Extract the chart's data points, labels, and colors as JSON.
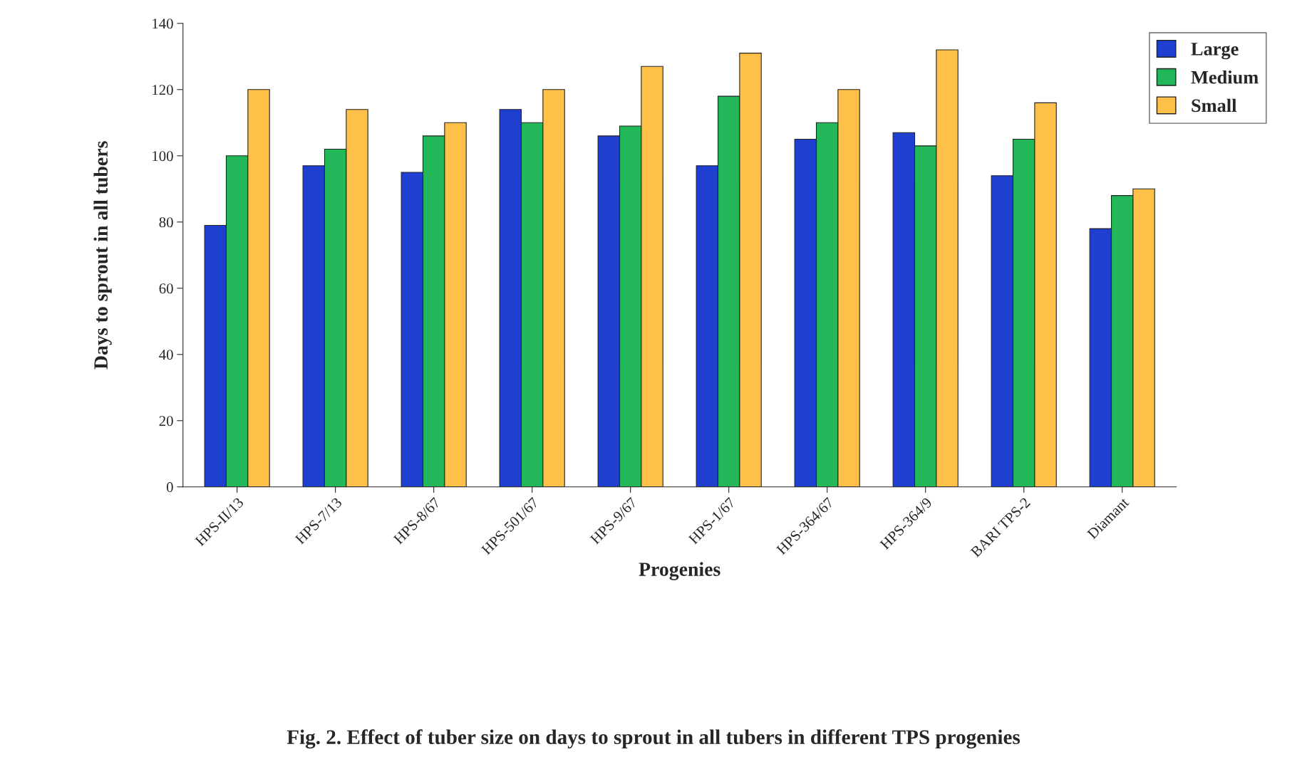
{
  "chart_data": {
    "type": "bar",
    "title": "Fig. 2. Effect of tuber size on days to sprout in all tubers in different TPS progenies",
    "xlabel": "Progenies",
    "ylabel": "Days to sprout in all tubers",
    "categories": [
      "HPS-II/13",
      "HPS-7/13",
      "HPS-8/67",
      "HPS-501/67",
      "HPS-9/67",
      "HPS-1/67",
      "HPS-364/67",
      "HPS-364/9",
      "BARI TPS-2",
      "Diamant"
    ],
    "series": [
      {
        "name": "Large",
        "color": "#1f3fd0",
        "values": [
          79,
          97,
          95,
          114,
          106,
          97,
          105,
          107,
          94,
          78
        ]
      },
      {
        "name": "Medium",
        "color": "#22b85a",
        "values": [
          100,
          102,
          106,
          110,
          109,
          118,
          110,
          103,
          105,
          88
        ]
      },
      {
        "name": "Small",
        "color": "#ffc04a",
        "values": [
          120,
          114,
          110,
          120,
          127,
          131,
          120,
          132,
          116,
          90
        ]
      }
    ],
    "ylim": [
      0,
      140
    ],
    "yticks": [
      0,
      20,
      40,
      60,
      80,
      100,
      120,
      140
    ],
    "grid": false,
    "legend": "top right"
  }
}
